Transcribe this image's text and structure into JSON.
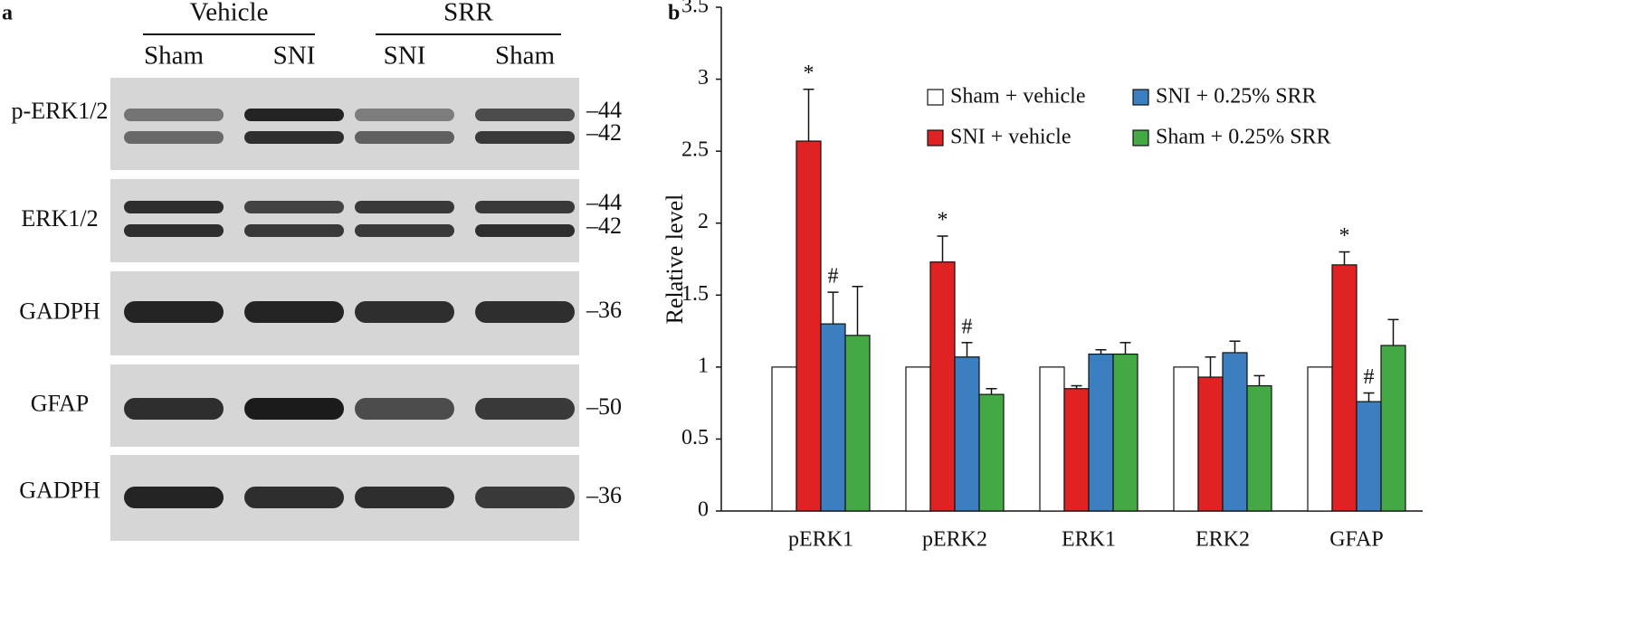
{
  "panel_a": {
    "label": "a",
    "groups": [
      {
        "name": "Vehicle",
        "lanes": [
          "Sham",
          "SNI"
        ]
      },
      {
        "name": "SRR",
        "lanes": [
          "SNI",
          "Sham"
        ]
      }
    ],
    "rows": [
      {
        "name": "p-ERK1/2",
        "markers": [
          "–44",
          "–42"
        ]
      },
      {
        "name": "ERK1/2",
        "markers": [
          "–44",
          "–42"
        ]
      },
      {
        "name": "GADPH",
        "markers": [
          "–36"
        ]
      },
      {
        "name": "GFAP",
        "markers": [
          "–50"
        ]
      },
      {
        "name": "GADPH",
        "markers": [
          "–36"
        ]
      }
    ]
  },
  "chart_data": {
    "type": "bar",
    "panel_label": "b",
    "ylabel": "Relative level",
    "categories": [
      "pERK1",
      "pERK2",
      "ERK1",
      "ERK2",
      "GFAP"
    ],
    "series": [
      {
        "name": "Sham + vehicle",
        "color": "#ffffff",
        "values": [
          1,
          1,
          1,
          1,
          1
        ]
      },
      {
        "name": "SNI + vehicle",
        "color": "#e02222",
        "values": [
          2.57,
          1.73,
          0.85,
          0.93,
          1.71
        ],
        "errors": [
          0.36,
          0.18,
          0.02,
          0.14,
          0.09
        ],
        "markers": [
          "*",
          "*",
          null,
          null,
          "*"
        ]
      },
      {
        "name": "SNI + 0.25% SRR",
        "color": "#3b7fc0",
        "values": [
          1.3,
          1.07,
          1.09,
          1.1,
          0.76
        ],
        "errors": [
          0.22,
          0.1,
          0.03,
          0.08,
          0.06
        ],
        "markers": [
          "#",
          "#",
          null,
          null,
          "#"
        ]
      },
      {
        "name": "Sham + 0.25% SRR",
        "color": "#44a845",
        "values": [
          1.22,
          0.81,
          1.09,
          0.87,
          1.15
        ],
        "errors": [
          0.34,
          0.04,
          0.08,
          0.07,
          0.18
        ]
      }
    ],
    "ylim": [
      0,
      3.5
    ],
    "yticks": [
      0,
      0.5,
      1,
      1.5,
      2,
      2.5,
      3,
      3.5
    ],
    "grid": false
  }
}
